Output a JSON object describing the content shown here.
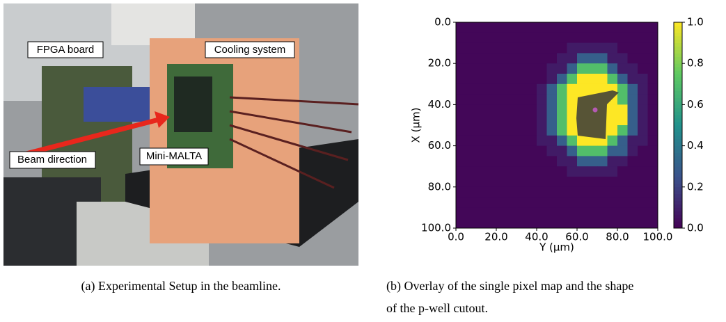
{
  "photo": {
    "labels": [
      "FPGA board",
      "Cooling system",
      "Beam direction",
      "Mini-MALTA"
    ],
    "caption": "(a)  Experimental Setup in the beamline."
  },
  "chart_data": {
    "type": "heatmap",
    "xlabel": "Y (μm)",
    "ylabel": "X (μm)",
    "xlim": [
      0,
      100
    ],
    "ylim": [
      0,
      100
    ],
    "y_inverted": true,
    "xticks": [
      {
        "value": 0,
        "label": "0.0"
      },
      {
        "value": 20,
        "label": "20.0"
      },
      {
        "value": 40,
        "label": "40.0"
      },
      {
        "value": 60,
        "label": "60.0"
      },
      {
        "value": 80,
        "label": "80.0"
      },
      {
        "value": 100,
        "label": "100.0"
      }
    ],
    "yticks": [
      {
        "value": 0,
        "label": "0.0"
      },
      {
        "value": 20,
        "label": "20.0"
      },
      {
        "value": 40,
        "label": "40.0"
      },
      {
        "value": 60,
        "label": "60.0"
      },
      {
        "value": 80,
        "label": "80.0"
      },
      {
        "value": 100,
        "label": "100.0"
      }
    ],
    "clim": [
      0,
      1
    ],
    "cticks": [
      {
        "value": 0,
        "label": "0.0"
      },
      {
        "value": 0.2,
        "label": "0.2"
      },
      {
        "value": 0.4,
        "label": "0.4"
      },
      {
        "value": 0.6,
        "label": "0.6"
      },
      {
        "value": 0.8,
        "label": "0.8"
      },
      {
        "value": 1,
        "label": "1.0"
      }
    ],
    "colormap": [
      "#440154",
      "#3b528b",
      "#21918c",
      "#5ec962",
      "#fde725"
    ],
    "z": [
      [
        0.02,
        0.02,
        0.02,
        0.02,
        0.02,
        0.02,
        0.02,
        0.02,
        0.02,
        0.02,
        0.02,
        0.02,
        0.02,
        0.02,
        0.02,
        0.02,
        0.02,
        0.02,
        0.02,
        0.02
      ],
      [
        0.02,
        0.02,
        0.02,
        0.02,
        0.02,
        0.02,
        0.02,
        0.02,
        0.02,
        0.02,
        0.02,
        0.02,
        0.02,
        0.02,
        0.02,
        0.02,
        0.02,
        0.02,
        0.02,
        0.02
      ],
      [
        0.02,
        0.02,
        0.02,
        0.02,
        0.02,
        0.02,
        0.02,
        0.02,
        0.02,
        0.02,
        0.02,
        0.08,
        0.08,
        0.08,
        0.08,
        0.08,
        0.02,
        0.02,
        0.02,
        0.02
      ],
      [
        0.02,
        0.02,
        0.02,
        0.02,
        0.02,
        0.02,
        0.02,
        0.02,
        0.02,
        0.02,
        0.08,
        0.08,
        0.3,
        0.3,
        0.3,
        0.08,
        0.08,
        0.02,
        0.02,
        0.02
      ],
      [
        0.02,
        0.02,
        0.02,
        0.02,
        0.02,
        0.02,
        0.02,
        0.02,
        0.02,
        0.08,
        0.08,
        0.3,
        0.7,
        0.7,
        0.7,
        0.3,
        0.08,
        0.08,
        0.02,
        0.02
      ],
      [
        0.02,
        0.02,
        0.02,
        0.02,
        0.02,
        0.02,
        0.02,
        0.02,
        0.02,
        0.08,
        0.3,
        0.7,
        1,
        1,
        1,
        0.7,
        0.3,
        0.08,
        0.08,
        0.02
      ],
      [
        0.02,
        0.02,
        0.02,
        0.02,
        0.02,
        0.02,
        0.02,
        0.02,
        0.08,
        0.3,
        0.7,
        1,
        1,
        1,
        1,
        1,
        0.7,
        0.3,
        0.08,
        0.02
      ],
      [
        0.02,
        0.02,
        0.02,
        0.02,
        0.02,
        0.02,
        0.02,
        0.02,
        0.08,
        0.3,
        0.7,
        1,
        1,
        1,
        1,
        1,
        0.7,
        0.3,
        0.08,
        0.02
      ],
      [
        0.02,
        0.02,
        0.02,
        0.02,
        0.02,
        0.02,
        0.02,
        0.02,
        0.08,
        0.3,
        0.7,
        1,
        1,
        1,
        1,
        1,
        1,
        0.3,
        0.08,
        0.02
      ],
      [
        0.02,
        0.02,
        0.02,
        0.02,
        0.02,
        0.02,
        0.02,
        0.02,
        0.08,
        0.3,
        0.7,
        1,
        1,
        1,
        1,
        1,
        1,
        0.3,
        0.08,
        0.02
      ],
      [
        0.02,
        0.02,
        0.02,
        0.02,
        0.02,
        0.02,
        0.02,
        0.02,
        0.08,
        0.3,
        0.7,
        1,
        1,
        1,
        1,
        1,
        0.7,
        0.3,
        0.08,
        0.02
      ],
      [
        0.02,
        0.02,
        0.02,
        0.02,
        0.02,
        0.02,
        0.02,
        0.02,
        0.08,
        0.08,
        0.3,
        0.7,
        1,
        1,
        1,
        0.7,
        0.3,
        0.08,
        0.08,
        0.02
      ],
      [
        0.02,
        0.02,
        0.02,
        0.02,
        0.02,
        0.02,
        0.02,
        0.02,
        0.02,
        0.08,
        0.08,
        0.3,
        0.7,
        0.7,
        0.7,
        0.3,
        0.3,
        0.08,
        0.02,
        0.02
      ],
      [
        0.02,
        0.02,
        0.02,
        0.02,
        0.02,
        0.02,
        0.02,
        0.02,
        0.02,
        0.02,
        0.08,
        0.08,
        0.3,
        0.3,
        0.3,
        0.08,
        0.08,
        0.02,
        0.02,
        0.02
      ],
      [
        0.02,
        0.02,
        0.02,
        0.02,
        0.02,
        0.02,
        0.02,
        0.02,
        0.02,
        0.02,
        0.02,
        0.08,
        0.08,
        0.08,
        0.08,
        0.08,
        0.02,
        0.02,
        0.02,
        0.02
      ],
      [
        0.02,
        0.02,
        0.02,
        0.02,
        0.02,
        0.02,
        0.02,
        0.02,
        0.02,
        0.02,
        0.02,
        0.02,
        0.02,
        0.02,
        0.02,
        0.02,
        0.02,
        0.02,
        0.02,
        0.02
      ],
      [
        0.02,
        0.02,
        0.02,
        0.02,
        0.02,
        0.02,
        0.02,
        0.02,
        0.02,
        0.02,
        0.02,
        0.02,
        0.02,
        0.02,
        0.02,
        0.02,
        0.02,
        0.02,
        0.02,
        0.02
      ],
      [
        0.02,
        0.02,
        0.02,
        0.02,
        0.02,
        0.02,
        0.02,
        0.02,
        0.02,
        0.02,
        0.02,
        0.02,
        0.02,
        0.02,
        0.02,
        0.02,
        0.02,
        0.02,
        0.02,
        0.02
      ],
      [
        0.02,
        0.02,
        0.02,
        0.02,
        0.02,
        0.02,
        0.02,
        0.02,
        0.02,
        0.02,
        0.02,
        0.02,
        0.02,
        0.02,
        0.02,
        0.02,
        0.02,
        0.02,
        0.02,
        0.02
      ],
      [
        0.02,
        0.02,
        0.02,
        0.02,
        0.02,
        0.02,
        0.02,
        0.02,
        0.02,
        0.02,
        0.02,
        0.02,
        0.02,
        0.02,
        0.02,
        0.02,
        0.02,
        0.02,
        0.02,
        0.02
      ]
    ],
    "caption": [
      "(b)  Overlay of the single pixel map and the shape",
      "of the p-well cutout."
    ]
  }
}
